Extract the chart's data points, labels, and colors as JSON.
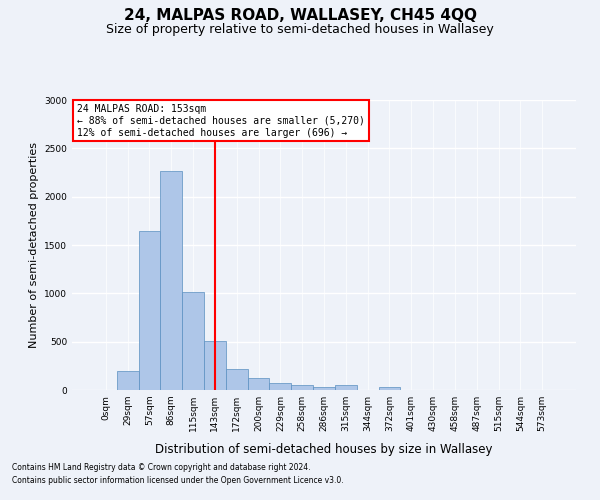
{
  "title": "24, MALPAS ROAD, WALLASEY, CH45 4QQ",
  "subtitle": "Size of property relative to semi-detached houses in Wallasey",
  "xlabel": "Distribution of semi-detached houses by size in Wallasey",
  "ylabel": "Number of semi-detached properties",
  "bin_labels": [
    "0sqm",
    "29sqm",
    "57sqm",
    "86sqm",
    "115sqm",
    "143sqm",
    "172sqm",
    "200sqm",
    "229sqm",
    "258sqm",
    "286sqm",
    "315sqm",
    "344sqm",
    "372sqm",
    "401sqm",
    "430sqm",
    "458sqm",
    "487sqm",
    "515sqm",
    "544sqm",
    "573sqm"
  ],
  "bar_values": [
    0,
    200,
    1650,
    2270,
    1010,
    510,
    215,
    120,
    70,
    50,
    35,
    50,
    0,
    35,
    0,
    0,
    0,
    0,
    0,
    0,
    0
  ],
  "bar_color": "#aec6e8",
  "bar_edge_color": "#5a8fc0",
  "red_line_x": 5.0,
  "annotation_text_line1": "24 MALPAS ROAD: 153sqm",
  "annotation_text_line2": "← 88% of semi-detached houses are smaller (5,270)",
  "annotation_text_line3": "12% of semi-detached houses are larger (696) →",
  "ylim": [
    0,
    3000
  ],
  "footnote_line1": "Contains HM Land Registry data © Crown copyright and database right 2024.",
  "footnote_line2": "Contains public sector information licensed under the Open Government Licence v3.0.",
  "bg_color": "#eef2f9",
  "grid_color": "#ffffff",
  "title_fontsize": 11,
  "subtitle_fontsize": 9,
  "ylabel_fontsize": 8,
  "xlabel_fontsize": 8.5,
  "annot_fontsize": 7,
  "footnote_fontsize": 5.5,
  "tick_fontsize": 6.5
}
